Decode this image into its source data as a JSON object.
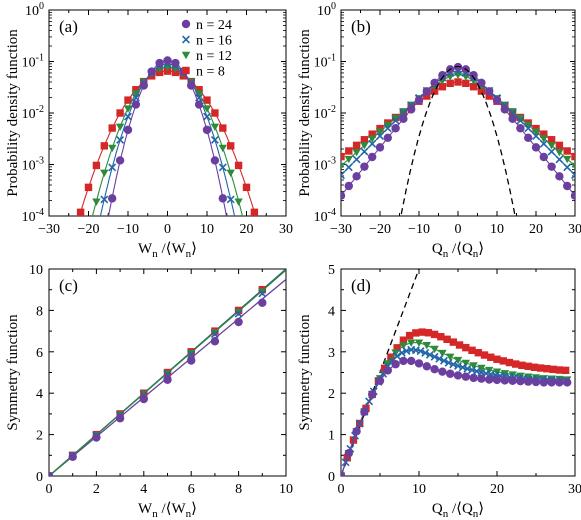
{
  "chart_data": [
    {
      "type": "line",
      "panel_label": "(a)",
      "ylabel": "Probability density function",
      "xlabel": {
        "main": "W",
        "sub": "n",
        "mid": " /⟨W",
        "sub2": "n",
        "end": "⟩"
      },
      "xlim": [
        -30,
        30
      ],
      "ylim": [
        0.0001,
        1
      ],
      "yscale": "log",
      "xticks": [
        -30,
        -20,
        -10,
        0,
        10,
        20,
        30
      ],
      "yticks": [
        {
          "value": 0.0001,
          "base": "10",
          "exp": "-4"
        },
        {
          "value": 0.001,
          "base": "10",
          "exp": "-3"
        },
        {
          "value": 0.01,
          "base": "10",
          "exp": "-2"
        },
        {
          "value": 0.1,
          "base": "10",
          "exp": "-1"
        },
        {
          "value": 1,
          "base": "10",
          "exp": "0"
        }
      ],
      "legend": [
        "n = 24",
        "n = 16",
        "n = 12",
        "n =  8"
      ],
      "legend_position": "top-right",
      "series": [
        {
          "name": "n = 24",
          "color": "#6a3fa0",
          "marker": "circle",
          "sigma": 4.0,
          "amp": 0.105,
          "x": [
            -14,
            -12,
            -10,
            -8,
            -6,
            -4,
            -2,
            0,
            2,
            4,
            6,
            8,
            10,
            12,
            14
          ],
          "y": [
            0.00022,
            0.0012,
            0.0047,
            0.0146,
            0.0341,
            0.0639,
            0.0934,
            0.105,
            0.0934,
            0.0639,
            0.0341,
            0.0146,
            0.0047,
            0.0012,
            0.00022
          ]
        },
        {
          "name": "n = 16",
          "color": "#2166a8",
          "marker": "x",
          "sigma": 4.6,
          "amp": 0.09,
          "x": [
            -16,
            -14,
            -12,
            -10,
            -8,
            -6,
            -4,
            -2,
            0,
            2,
            4,
            6,
            8,
            10,
            12,
            14,
            16
          ],
          "y": [
            0.00021,
            0.00088,
            0.003,
            0.0085,
            0.0198,
            0.0384,
            0.0613,
            0.082,
            0.09,
            0.082,
            0.0613,
            0.0384,
            0.0198,
            0.0085,
            0.003,
            0.00088,
            0.00021
          ]
        },
        {
          "name": "n = 12",
          "color": "#2e8b3a",
          "marker": "triangle-down",
          "sigma": 5.2,
          "amp": 0.078,
          "x": [
            -18,
            -16,
            -14,
            -12,
            -10,
            -8,
            -6,
            -4,
            -2,
            0,
            2,
            4,
            6,
            8,
            10,
            12,
            14,
            16,
            18
          ],
          "y": [
            0.00019,
            0.00069,
            0.0021,
            0.0054,
            0.0122,
            0.0238,
            0.04,
            0.0583,
            0.0727,
            0.078,
            0.0727,
            0.0583,
            0.04,
            0.0238,
            0.0122,
            0.0054,
            0.0021,
            0.00069,
            0.00019
          ]
        },
        {
          "name": "n =  8",
          "color": "#d62728",
          "marker": "square",
          "sigma": 6.2,
          "amp": 0.065,
          "x": [
            -22,
            -20,
            -18,
            -16,
            -14,
            -12,
            -10,
            -8,
            -6,
            -4,
            -2,
            0,
            2,
            4,
            6,
            8,
            10,
            12,
            14,
            16,
            18,
            20,
            22
          ],
          "y": [
            0.000118,
            0.00036,
            0.00096,
            0.0023,
            0.0051,
            0.01,
            0.0178,
            0.0283,
            0.0407,
            0.0526,
            0.0614,
            0.065,
            0.0614,
            0.0526,
            0.0407,
            0.0283,
            0.0178,
            0.01,
            0.0051,
            0.0023,
            0.00096,
            0.00036,
            0.000118
          ]
        }
      ]
    },
    {
      "type": "line",
      "panel_label": "(b)",
      "ylabel": "Probability density function",
      "xlabel": {
        "main": "Q",
        "sub": "n",
        "mid": " /⟨Q",
        "sub2": "n",
        "end": "⟩"
      },
      "xlim": [
        -30,
        30
      ],
      "ylim": [
        0.0001,
        1
      ],
      "yscale": "log",
      "xticks": [
        -30,
        -20,
        -10,
        0,
        10,
        20,
        30
      ],
      "yticks": [
        {
          "value": 0.0001,
          "base": "10",
          "exp": "-4"
        },
        {
          "value": 0.001,
          "base": "10",
          "exp": "-3"
        },
        {
          "value": 0.01,
          "base": "10",
          "exp": "-2"
        },
        {
          "value": 0.1,
          "base": "10",
          "exp": "-1"
        },
        {
          "value": 1,
          "base": "10",
          "exp": "0"
        }
      ],
      "series": [
        {
          "name": "n = 24",
          "color": "#6a3fa0",
          "marker": "circle",
          "amp": 0.078,
          "rate": 0.219,
          "step": 2
        },
        {
          "name": "n = 16",
          "color": "#2166a8",
          "marker": "x",
          "amp": 0.065,
          "rate": 0.177,
          "step": 2
        },
        {
          "name": "n = 12",
          "color": "#2e8b3a",
          "marker": "triangle-down",
          "amp": 0.055,
          "rate": 0.155,
          "step": 2
        },
        {
          "name": "n =  8",
          "color": "#d62728",
          "marker": "square",
          "amp": 0.04,
          "rate": 0.127,
          "step": 2
        }
      ],
      "reference_curve": {
        "style": "dashed",
        "amp": 0.08,
        "sigma": 4.0
      }
    },
    {
      "type": "scatter",
      "panel_label": "(c)",
      "ylabel": "Symmetry function",
      "xlabel": {
        "main": "W",
        "sub": "n",
        "mid": " /⟨W",
        "sub2": "n",
        "end": "⟩"
      },
      "xlim": [
        0,
        10
      ],
      "ylim": [
        0,
        10
      ],
      "xticks": [
        0,
        2,
        4,
        6,
        8,
        10
      ],
      "yticks": [
        0,
        2,
        4,
        6,
        8,
        10
      ],
      "series": [
        {
          "name": "n = 24",
          "color": "#6a3fa0",
          "marker": "circle",
          "slope": 0.93,
          "x": [
            0,
            1,
            2,
            3,
            4,
            5,
            6,
            7,
            8,
            9
          ]
        },
        {
          "name": "n = 16",
          "color": "#2166a8",
          "marker": "x",
          "slope": 0.98,
          "x": [
            0,
            1,
            2,
            3,
            4,
            5,
            6,
            7,
            8,
            9
          ]
        },
        {
          "name": "n = 12",
          "color": "#2e8b3a",
          "marker": "triangle-down",
          "slope": 0.99,
          "x": [
            0,
            1,
            2,
            3,
            4,
            5,
            6,
            7,
            8,
            9
          ]
        },
        {
          "name": "n =  8",
          "color": "#d62728",
          "marker": "square",
          "slope": 1.0,
          "x": [
            0,
            1,
            2,
            3,
            4,
            5,
            6,
            7,
            8,
            9
          ]
        }
      ],
      "lines": [
        {
          "color": "#6a3fa0",
          "slope": 0.95
        },
        {
          "color": "#1f4e8c",
          "slope": 1.0
        },
        {
          "color": "#2e8b3a",
          "slope": 0.995
        }
      ]
    },
    {
      "type": "line",
      "panel_label": "(d)",
      "ylabel": "Symmetry function",
      "xlabel": {
        "main": "Q",
        "sub": "n",
        "mid": " /⟨Q",
        "sub2": "n",
        "end": "⟩"
      },
      "xlim": [
        0,
        30
      ],
      "ylim": [
        0,
        5
      ],
      "xticks": [
        0,
        10,
        20,
        30
      ],
      "yticks": [
        0,
        1,
        2,
        3,
        4,
        5
      ],
      "series": [
        {
          "name": "n = 24",
          "color": "#6a3fa0",
          "marker": "circle",
          "step": 1,
          "x": [
            0,
            1,
            2,
            3,
            4,
            5,
            6,
            7,
            8,
            9,
            10,
            11,
            12,
            13,
            14,
            15,
            16,
            17,
            18,
            19,
            20,
            21,
            22,
            23,
            24,
            25,
            26,
            27,
            28,
            29
          ],
          "y": [
            0,
            0.55,
            1.08,
            1.55,
            1.97,
            2.3,
            2.55,
            2.7,
            2.78,
            2.78,
            2.72,
            2.65,
            2.58,
            2.52,
            2.47,
            2.43,
            2.4,
            2.37,
            2.35,
            2.33,
            2.32,
            2.31,
            2.3,
            2.29,
            2.28,
            2.27,
            2.26,
            2.26,
            2.26,
            2.26
          ]
        },
        {
          "name": "n = 16",
          "color": "#2166a8",
          "marker": "x",
          "step": 0.6,
          "x": [
            0,
            1,
            2,
            3,
            4,
            5,
            6,
            7,
            8,
            9,
            10,
            11,
            12,
            13,
            14,
            15,
            16,
            17,
            18,
            19,
            20,
            21,
            22,
            23,
            24,
            25,
            26,
            27,
            28,
            29
          ],
          "y": [
            0,
            0.55,
            1.08,
            1.55,
            1.97,
            2.35,
            2.65,
            2.87,
            3.0,
            3.05,
            3.03,
            2.96,
            2.88,
            2.8,
            2.72,
            2.66,
            2.6,
            2.55,
            2.5,
            2.46,
            2.43,
            2.4,
            2.38,
            2.36,
            2.34,
            2.33,
            2.32,
            2.31,
            2.3,
            2.3
          ]
        },
        {
          "name": "n = 12",
          "color": "#2e8b3a",
          "marker": "triangle-down",
          "step": 1,
          "x": [
            0,
            1,
            2,
            3,
            4,
            5,
            6,
            7,
            8,
            9,
            10,
            11,
            12,
            13,
            14,
            15,
            16,
            17,
            18,
            19,
            20,
            21,
            22,
            23,
            24,
            25,
            26,
            27,
            28,
            29
          ],
          "y": [
            0,
            0.55,
            1.08,
            1.55,
            1.97,
            2.36,
            2.72,
            2.98,
            3.15,
            3.22,
            3.22,
            3.16,
            3.07,
            2.97,
            2.88,
            2.8,
            2.73,
            2.67,
            2.61,
            2.56,
            2.52,
            2.48,
            2.45,
            2.42,
            2.4,
            2.38,
            2.36,
            2.35,
            2.34,
            2.33
          ]
        },
        {
          "name": "n =  8",
          "color": "#d62728",
          "marker": "square",
          "step": 0.8,
          "x": [
            0,
            1,
            2,
            3,
            4,
            5,
            6,
            7,
            8,
            9,
            10,
            11,
            12,
            13,
            14,
            15,
            16,
            17,
            18,
            19,
            20,
            21,
            22,
            23,
            24,
            25,
            26,
            27,
            28,
            29
          ],
          "y": [
            0,
            0.55,
            1.08,
            1.55,
            1.97,
            2.38,
            2.75,
            3.05,
            3.28,
            3.42,
            3.48,
            3.47,
            3.42,
            3.35,
            3.27,
            3.18,
            3.1,
            3.02,
            2.95,
            2.88,
            2.82,
            2.77,
            2.72,
            2.68,
            2.65,
            2.62,
            2.6,
            2.58,
            2.56,
            2.55
          ]
        }
      ],
      "reference_line": {
        "style": "dashed",
        "slope": 0.5
      }
    }
  ]
}
